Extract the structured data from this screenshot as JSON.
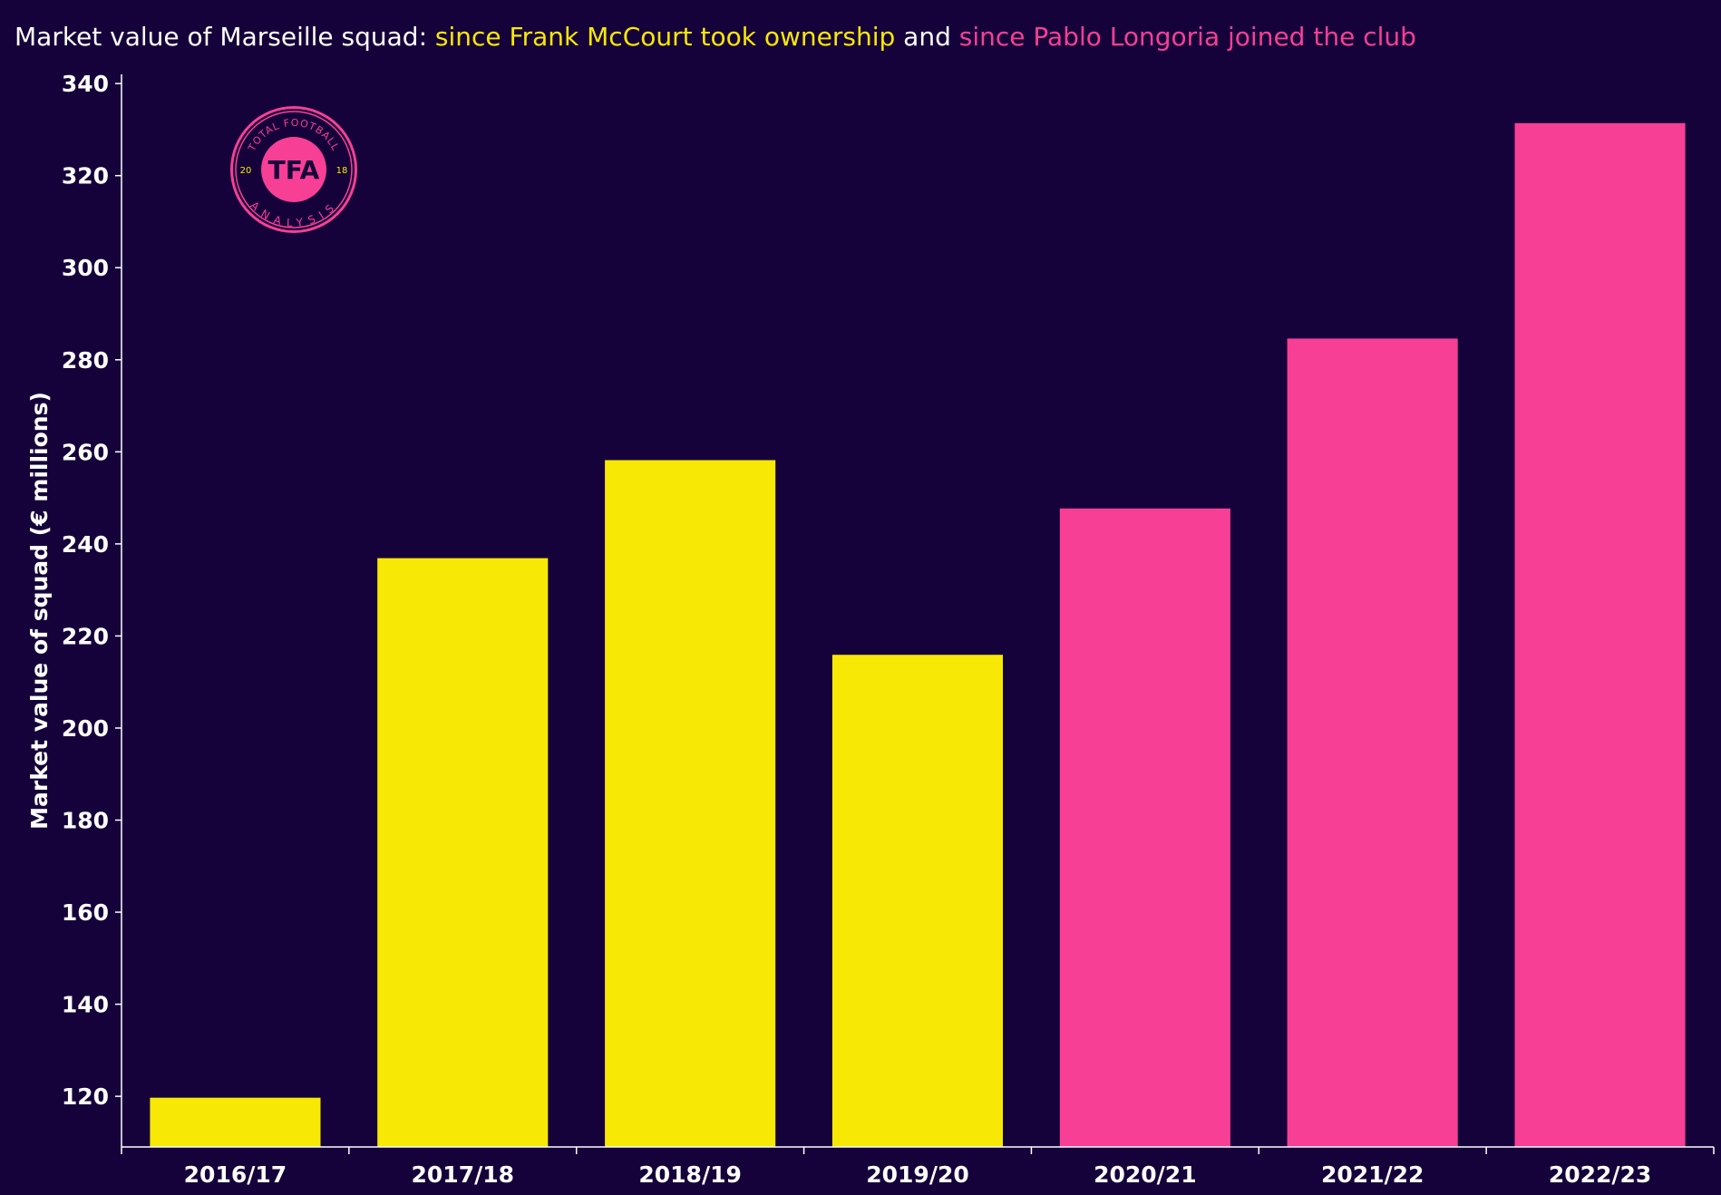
{
  "title": {
    "prefix": "Market value of Marseille squad: ",
    "highlight_1": "since Frank McCourt took ownership",
    "joiner": " and ",
    "highlight_2": "since Pablo Longoria joined the club"
  },
  "logo": {
    "text_main": "TFA",
    "text_top": "TOTAL FOOTBALL",
    "text_bottom": "ANALYSIS",
    "year_left": "20",
    "year_right": "18"
  },
  "colors": {
    "background": "#15023a",
    "text": "#ffffff",
    "mccourt": "#f8e805",
    "longoria": "#f73f96"
  },
  "chart_data": {
    "type": "bar",
    "title": "Market value of Marseille squad: since Frank McCourt took ownership and since Pablo Longoria joined the club",
    "ylabel": "Market value of squad (€ millions)",
    "xlabel": "",
    "ylim": [
      109,
      342
    ],
    "yticks": [
      120,
      140,
      160,
      180,
      200,
      220,
      240,
      260,
      280,
      300,
      320,
      340
    ],
    "categories": [
      "2016/17",
      "2017/18",
      "2018/19",
      "2019/20",
      "2020/21",
      "2021/22",
      "2022/23"
    ],
    "values": [
      119.7,
      236.9,
      258.2,
      215.9,
      247.7,
      284.6,
      331.4
    ],
    "bar_groups": [
      "mccourt",
      "mccourt",
      "mccourt",
      "mccourt",
      "longoria",
      "longoria",
      "longoria"
    ],
    "grid": false
  }
}
